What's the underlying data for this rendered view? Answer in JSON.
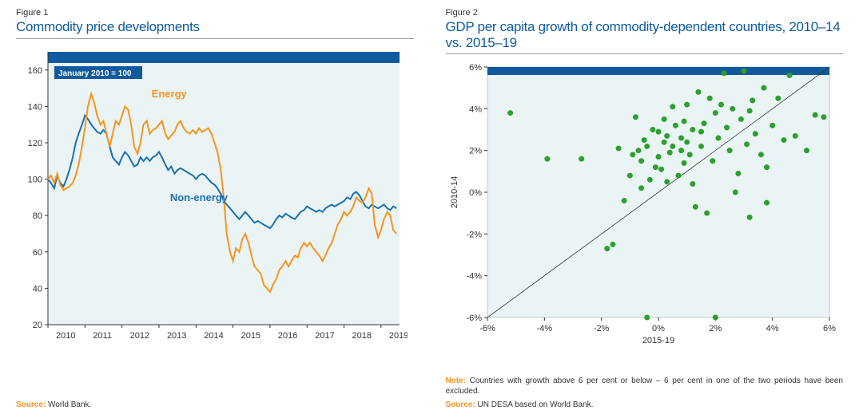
{
  "figure1": {
    "label": "Figure 1",
    "title": "Commodity price developments",
    "type": "line",
    "badge": "January 2010 = 100",
    "xlim": [
      2010,
      2019.5
    ],
    "ylim": [
      20,
      170
    ],
    "yticks": [
      20,
      40,
      60,
      80,
      100,
      120,
      140,
      160
    ],
    "xticks": [
      2010,
      2011,
      2012,
      2013,
      2014,
      2015,
      2016,
      2017,
      2018,
      2019
    ],
    "series_labels": {
      "energy": "Energy",
      "nonenergy": "Non-energy"
    },
    "colors": {
      "energy": "#f7941e",
      "nonenergy": "#1b6fb0",
      "header_bar": "#0d5a9e",
      "plot_bg": "#eaf4f4",
      "axis": "#333333",
      "text": "#333333"
    },
    "line_width": 2,
    "series": {
      "energy": [
        [
          2010.0,
          100
        ],
        [
          2010.08,
          102
        ],
        [
          2010.17,
          98
        ],
        [
          2010.25,
          103
        ],
        [
          2010.33,
          97
        ],
        [
          2010.42,
          94
        ],
        [
          2010.5,
          95
        ],
        [
          2010.58,
          96
        ],
        [
          2010.67,
          98
        ],
        [
          2010.75,
          102
        ],
        [
          2010.83,
          108
        ],
        [
          2010.92,
          118
        ],
        [
          2011.0,
          128
        ],
        [
          2011.08,
          140
        ],
        [
          2011.17,
          147
        ],
        [
          2011.25,
          142
        ],
        [
          2011.33,
          135
        ],
        [
          2011.42,
          130
        ],
        [
          2011.5,
          132
        ],
        [
          2011.58,
          125
        ],
        [
          2011.67,
          118
        ],
        [
          2011.75,
          125
        ],
        [
          2011.83,
          132
        ],
        [
          2011.92,
          130
        ],
        [
          2012.0,
          135
        ],
        [
          2012.08,
          140
        ],
        [
          2012.17,
          138
        ],
        [
          2012.25,
          130
        ],
        [
          2012.33,
          118
        ],
        [
          2012.42,
          114
        ],
        [
          2012.5,
          120
        ],
        [
          2012.58,
          130
        ],
        [
          2012.67,
          132
        ],
        [
          2012.75,
          125
        ],
        [
          2012.83,
          127
        ],
        [
          2012.92,
          128
        ],
        [
          2013.0,
          130
        ],
        [
          2013.08,
          132
        ],
        [
          2013.17,
          125
        ],
        [
          2013.25,
          122
        ],
        [
          2013.33,
          124
        ],
        [
          2013.42,
          126
        ],
        [
          2013.5,
          130
        ],
        [
          2013.58,
          132
        ],
        [
          2013.67,
          128
        ],
        [
          2013.75,
          126
        ],
        [
          2013.83,
          125
        ],
        [
          2013.92,
          127
        ],
        [
          2014.0,
          125
        ],
        [
          2014.08,
          128
        ],
        [
          2014.17,
          126
        ],
        [
          2014.25,
          127
        ],
        [
          2014.33,
          128
        ],
        [
          2014.42,
          125
        ],
        [
          2014.5,
          120
        ],
        [
          2014.58,
          115
        ],
        [
          2014.67,
          105
        ],
        [
          2014.75,
          90
        ],
        [
          2014.83,
          70
        ],
        [
          2014.92,
          60
        ],
        [
          2015.0,
          55
        ],
        [
          2015.08,
          62
        ],
        [
          2015.17,
          60
        ],
        [
          2015.25,
          67
        ],
        [
          2015.33,
          70
        ],
        [
          2015.42,
          65
        ],
        [
          2015.5,
          58
        ],
        [
          2015.58,
          52
        ],
        [
          2015.67,
          50
        ],
        [
          2015.75,
          48
        ],
        [
          2015.83,
          42
        ],
        [
          2015.92,
          40
        ],
        [
          2016.0,
          38
        ],
        [
          2016.08,
          42
        ],
        [
          2016.17,
          45
        ],
        [
          2016.25,
          50
        ],
        [
          2016.33,
          52
        ],
        [
          2016.42,
          55
        ],
        [
          2016.5,
          52
        ],
        [
          2016.58,
          55
        ],
        [
          2016.67,
          58
        ],
        [
          2016.75,
          57
        ],
        [
          2016.83,
          62
        ],
        [
          2016.92,
          65
        ],
        [
          2017.0,
          63
        ],
        [
          2017.08,
          65
        ],
        [
          2017.17,
          62
        ],
        [
          2017.25,
          60
        ],
        [
          2017.33,
          58
        ],
        [
          2017.42,
          55
        ],
        [
          2017.5,
          58
        ],
        [
          2017.58,
          62
        ],
        [
          2017.67,
          65
        ],
        [
          2017.75,
          70
        ],
        [
          2017.83,
          75
        ],
        [
          2017.92,
          78
        ],
        [
          2018.0,
          82
        ],
        [
          2018.08,
          80
        ],
        [
          2018.17,
          82
        ],
        [
          2018.25,
          85
        ],
        [
          2018.33,
          90
        ],
        [
          2018.42,
          88
        ],
        [
          2018.5,
          87
        ],
        [
          2018.58,
          90
        ],
        [
          2018.67,
          95
        ],
        [
          2018.75,
          92
        ],
        [
          2018.83,
          75
        ],
        [
          2018.92,
          68
        ],
        [
          2019.0,
          72
        ],
        [
          2019.08,
          78
        ],
        [
          2019.17,
          82
        ],
        [
          2019.25,
          80
        ],
        [
          2019.33,
          72
        ],
        [
          2019.42,
          70
        ]
      ],
      "nonenergy": [
        [
          2010.0,
          100
        ],
        [
          2010.08,
          98
        ],
        [
          2010.17,
          95
        ],
        [
          2010.25,
          102
        ],
        [
          2010.33,
          98
        ],
        [
          2010.42,
          96
        ],
        [
          2010.5,
          100
        ],
        [
          2010.58,
          105
        ],
        [
          2010.67,
          112
        ],
        [
          2010.75,
          120
        ],
        [
          2010.83,
          125
        ],
        [
          2010.92,
          130
        ],
        [
          2011.0,
          135
        ],
        [
          2011.08,
          133
        ],
        [
          2011.17,
          130
        ],
        [
          2011.25,
          128
        ],
        [
          2011.33,
          126
        ],
        [
          2011.42,
          125
        ],
        [
          2011.5,
          127
        ],
        [
          2011.58,
          125
        ],
        [
          2011.67,
          118
        ],
        [
          2011.75,
          112
        ],
        [
          2011.83,
          110
        ],
        [
          2011.92,
          108
        ],
        [
          2012.0,
          112
        ],
        [
          2012.08,
          115
        ],
        [
          2012.17,
          113
        ],
        [
          2012.25,
          110
        ],
        [
          2012.33,
          107
        ],
        [
          2012.42,
          108
        ],
        [
          2012.5,
          112
        ],
        [
          2012.58,
          110
        ],
        [
          2012.67,
          112
        ],
        [
          2012.75,
          110
        ],
        [
          2012.83,
          112
        ],
        [
          2012.92,
          113
        ],
        [
          2013.0,
          115
        ],
        [
          2013.08,
          112
        ],
        [
          2013.17,
          108
        ],
        [
          2013.25,
          105
        ],
        [
          2013.33,
          107
        ],
        [
          2013.42,
          103
        ],
        [
          2013.5,
          105
        ],
        [
          2013.58,
          106
        ],
        [
          2013.67,
          105
        ],
        [
          2013.75,
          104
        ],
        [
          2013.83,
          103
        ],
        [
          2013.92,
          102
        ],
        [
          2014.0,
          100
        ],
        [
          2014.08,
          102
        ],
        [
          2014.17,
          103
        ],
        [
          2014.25,
          102
        ],
        [
          2014.33,
          100
        ],
        [
          2014.42,
          98
        ],
        [
          2014.5,
          97
        ],
        [
          2014.58,
          95
        ],
        [
          2014.67,
          92
        ],
        [
          2014.75,
          88
        ],
        [
          2014.83,
          86
        ],
        [
          2014.92,
          84
        ],
        [
          2015.0,
          82
        ],
        [
          2015.08,
          80
        ],
        [
          2015.17,
          78
        ],
        [
          2015.25,
          80
        ],
        [
          2015.33,
          82
        ],
        [
          2015.42,
          80
        ],
        [
          2015.5,
          78
        ],
        [
          2015.58,
          76
        ],
        [
          2015.67,
          77
        ],
        [
          2015.75,
          76
        ],
        [
          2015.83,
          75
        ],
        [
          2015.92,
          74
        ],
        [
          2016.0,
          73
        ],
        [
          2016.08,
          75
        ],
        [
          2016.17,
          78
        ],
        [
          2016.25,
          80
        ],
        [
          2016.33,
          79
        ],
        [
          2016.42,
          81
        ],
        [
          2016.5,
          80
        ],
        [
          2016.58,
          79
        ],
        [
          2016.67,
          78
        ],
        [
          2016.75,
          80
        ],
        [
          2016.83,
          82
        ],
        [
          2016.92,
          83
        ],
        [
          2017.0,
          85
        ],
        [
          2017.08,
          84
        ],
        [
          2017.17,
          83
        ],
        [
          2017.25,
          82
        ],
        [
          2017.33,
          83
        ],
        [
          2017.42,
          82
        ],
        [
          2017.5,
          84
        ],
        [
          2017.58,
          85
        ],
        [
          2017.67,
          86
        ],
        [
          2017.75,
          85
        ],
        [
          2017.83,
          86
        ],
        [
          2017.92,
          87
        ],
        [
          2018.0,
          88
        ],
        [
          2018.08,
          90
        ],
        [
          2018.17,
          89
        ],
        [
          2018.25,
          92
        ],
        [
          2018.33,
          93
        ],
        [
          2018.42,
          91
        ],
        [
          2018.5,
          88
        ],
        [
          2018.58,
          85
        ],
        [
          2018.67,
          84
        ],
        [
          2018.75,
          86
        ],
        [
          2018.83,
          85
        ],
        [
          2018.92,
          84
        ],
        [
          2019.0,
          85
        ],
        [
          2019.08,
          86
        ],
        [
          2019.17,
          84
        ],
        [
          2019.25,
          83
        ],
        [
          2019.33,
          85
        ],
        [
          2019.42,
          84
        ]
      ]
    },
    "label_positions": {
      "energy": [
        2012.8,
        145
      ],
      "nonenergy": [
        2013.3,
        88
      ]
    },
    "source_label": "Source:",
    "source_text": " World Bank.",
    "title_fontsize": 17,
    "tick_fontsize": 11
  },
  "figure2": {
    "label": "Figure 2",
    "title": "GDP per capita growth of commodity-dependent countries, 2010–14 vs. 2015–19",
    "type": "scatter",
    "xlim": [
      -6,
      6
    ],
    "ylim": [
      -6,
      6
    ],
    "xticks": [
      -6,
      -4,
      -2,
      0,
      2,
      4,
      6
    ],
    "yticks": [
      -6,
      -4,
      -2,
      0,
      2,
      4,
      6
    ],
    "xlabel": "2015-19",
    "ylabel": "2010-14",
    "colors": {
      "points": "#2ca02c",
      "header_bar": "#0d5a9e",
      "plot_bg": "#eaf4f4",
      "axis": "#333333",
      "diag": "#333333"
    },
    "point_radius": 3.5,
    "diagonal": [
      [
        -6,
        -6
      ],
      [
        6,
        6
      ]
    ],
    "points": [
      [
        -5.2,
        3.8
      ],
      [
        -3.9,
        1.6
      ],
      [
        -2.7,
        1.6
      ],
      [
        -1.8,
        -2.7
      ],
      [
        -1.6,
        -2.5
      ],
      [
        -1.4,
        2.1
      ],
      [
        -1.2,
        -0.4
      ],
      [
        -1.0,
        0.8
      ],
      [
        -0.9,
        1.8
      ],
      [
        -0.8,
        3.6
      ],
      [
        -0.7,
        2.0
      ],
      [
        -0.6,
        1.5
      ],
      [
        -0.6,
        0.2
      ],
      [
        -0.5,
        2.5
      ],
      [
        -0.4,
        2.2
      ],
      [
        -0.4,
        -6.0
      ],
      [
        -0.3,
        0.6
      ],
      [
        -0.2,
        3.0
      ],
      [
        -0.1,
        1.2
      ],
      [
        0.0,
        2.9
      ],
      [
        0.0,
        1.7
      ],
      [
        0.1,
        1.1
      ],
      [
        0.2,
        3.5
      ],
      [
        0.2,
        2.4
      ],
      [
        0.3,
        0.5
      ],
      [
        0.3,
        2.7
      ],
      [
        0.4,
        1.9
      ],
      [
        0.5,
        2.2
      ],
      [
        0.5,
        4.1
      ],
      [
        0.6,
        3.2
      ],
      [
        0.7,
        0.8
      ],
      [
        0.8,
        2.0
      ],
      [
        0.8,
        2.6
      ],
      [
        0.9,
        3.4
      ],
      [
        0.9,
        1.4
      ],
      [
        1.0,
        4.2
      ],
      [
        1.0,
        2.4
      ],
      [
        1.1,
        1.8
      ],
      [
        1.2,
        3.0
      ],
      [
        1.2,
        0.4
      ],
      [
        1.3,
        -0.7
      ],
      [
        1.4,
        4.8
      ],
      [
        1.5,
        2.9
      ],
      [
        1.5,
        2.2
      ],
      [
        1.6,
        3.3
      ],
      [
        1.7,
        -1.0
      ],
      [
        1.8,
        4.5
      ],
      [
        1.9,
        1.5
      ],
      [
        2.0,
        3.8
      ],
      [
        2.0,
        -6.0
      ],
      [
        2.1,
        2.6
      ],
      [
        2.2,
        4.2
      ],
      [
        2.3,
        5.7
      ],
      [
        2.4,
        3.1
      ],
      [
        2.5,
        2.0
      ],
      [
        2.6,
        4.0
      ],
      [
        2.7,
        0.0
      ],
      [
        2.8,
        0.9
      ],
      [
        2.9,
        3.5
      ],
      [
        3.0,
        5.8
      ],
      [
        3.1,
        2.3
      ],
      [
        3.2,
        3.9
      ],
      [
        3.2,
        -1.2
      ],
      [
        3.3,
        4.4
      ],
      [
        3.4,
        2.8
      ],
      [
        3.6,
        1.8
      ],
      [
        3.7,
        5.0
      ],
      [
        3.8,
        1.2
      ],
      [
        3.8,
        -0.5
      ],
      [
        4.0,
        3.2
      ],
      [
        4.2,
        4.5
      ],
      [
        4.4,
        2.5
      ],
      [
        4.6,
        5.6
      ],
      [
        4.8,
        2.7
      ],
      [
        5.2,
        2.0
      ],
      [
        5.5,
        3.7
      ],
      [
        5.8,
        3.6
      ]
    ],
    "note_label": "Note:",
    "note_text": " Countries with growth above 6 per cent or below – 6 per cent in one of the two periods have been excluded.",
    "source_label": "Source:",
    "source_text": " UN DESA based on World Bank.",
    "title_fontsize": 17,
    "tick_fontsize": 11
  }
}
